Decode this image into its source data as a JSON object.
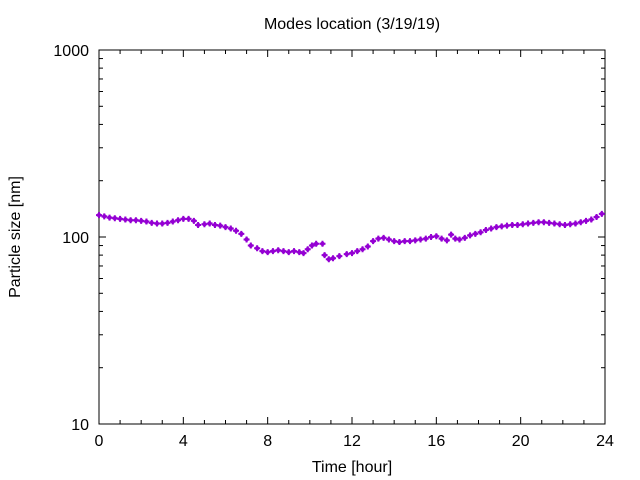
{
  "chart_data": {
    "type": "scatter",
    "title": "Modes location (3/19/19)",
    "xlabel": "Time [hour]",
    "ylabel": "Particle size [nm]",
    "xlim": [
      0,
      24
    ],
    "ylim": [
      10,
      1000
    ],
    "y_scale": "log",
    "x_ticks": [
      "0",
      "4",
      "8",
      "12",
      "16",
      "20",
      "24"
    ],
    "y_ticks": [
      "10",
      "100",
      "1000"
    ],
    "grid": false,
    "marker_color": "#9400d3",
    "series": [
      {
        "points": [
          [
            0.0,
            131
          ],
          [
            0.25,
            129
          ],
          [
            0.5,
            127
          ],
          [
            0.75,
            126
          ],
          [
            1.0,
            125
          ],
          [
            1.25,
            124
          ],
          [
            1.5,
            123
          ],
          [
            1.75,
            123
          ],
          [
            2.0,
            122
          ],
          [
            2.25,
            121
          ],
          [
            2.5,
            119
          ],
          [
            2.75,
            118
          ],
          [
            3.0,
            118
          ],
          [
            3.25,
            119
          ],
          [
            3.5,
            121
          ],
          [
            3.75,
            123
          ],
          [
            4.0,
            125
          ],
          [
            4.25,
            125
          ],
          [
            4.5,
            122
          ],
          [
            4.7,
            116
          ],
          [
            5.0,
            117
          ],
          [
            5.25,
            118
          ],
          [
            5.5,
            116
          ],
          [
            5.75,
            115
          ],
          [
            6.0,
            113
          ],
          [
            6.25,
            111
          ],
          [
            6.5,
            108
          ],
          [
            6.75,
            104
          ],
          [
            7.0,
            97
          ],
          [
            7.2,
            90
          ],
          [
            7.5,
            87
          ],
          [
            7.75,
            84
          ],
          [
            8.0,
            83
          ],
          [
            8.25,
            84
          ],
          [
            8.5,
            85
          ],
          [
            8.75,
            84
          ],
          [
            9.0,
            83
          ],
          [
            9.25,
            84
          ],
          [
            9.5,
            83
          ],
          [
            9.7,
            82
          ],
          [
            9.9,
            86
          ],
          [
            10.1,
            90
          ],
          [
            10.3,
            92
          ],
          [
            10.6,
            92
          ],
          [
            10.7,
            80
          ],
          [
            10.9,
            76
          ],
          [
            11.1,
            77
          ],
          [
            11.4,
            79
          ],
          [
            11.75,
            81
          ],
          [
            12.0,
            82
          ],
          [
            12.25,
            84
          ],
          [
            12.5,
            86
          ],
          [
            12.75,
            89
          ],
          [
            13.0,
            95
          ],
          [
            13.25,
            98
          ],
          [
            13.5,
            99
          ],
          [
            13.75,
            97
          ],
          [
            14.0,
            95
          ],
          [
            14.25,
            94
          ],
          [
            14.5,
            95
          ],
          [
            14.75,
            95
          ],
          [
            15.0,
            96
          ],
          [
            15.25,
            97
          ],
          [
            15.5,
            98
          ],
          [
            15.75,
            100
          ],
          [
            16.0,
            101
          ],
          [
            16.25,
            98
          ],
          [
            16.5,
            96
          ],
          [
            16.7,
            103
          ],
          [
            16.9,
            98
          ],
          [
            17.1,
            97
          ],
          [
            17.35,
            99
          ],
          [
            17.6,
            102
          ],
          [
            17.85,
            104
          ],
          [
            18.1,
            106
          ],
          [
            18.35,
            109
          ],
          [
            18.6,
            111
          ],
          [
            18.85,
            113
          ],
          [
            19.1,
            114
          ],
          [
            19.35,
            115
          ],
          [
            19.6,
            116
          ],
          [
            19.85,
            116
          ],
          [
            20.1,
            117
          ],
          [
            20.35,
            118
          ],
          [
            20.6,
            119
          ],
          [
            20.85,
            120
          ],
          [
            21.1,
            120
          ],
          [
            21.35,
            119
          ],
          [
            21.6,
            118
          ],
          [
            21.85,
            117
          ],
          [
            22.1,
            116
          ],
          [
            22.35,
            117
          ],
          [
            22.6,
            118
          ],
          [
            22.85,
            120
          ],
          [
            23.1,
            122
          ],
          [
            23.35,
            124
          ],
          [
            23.6,
            128
          ],
          [
            23.85,
            133
          ]
        ]
      }
    ]
  }
}
